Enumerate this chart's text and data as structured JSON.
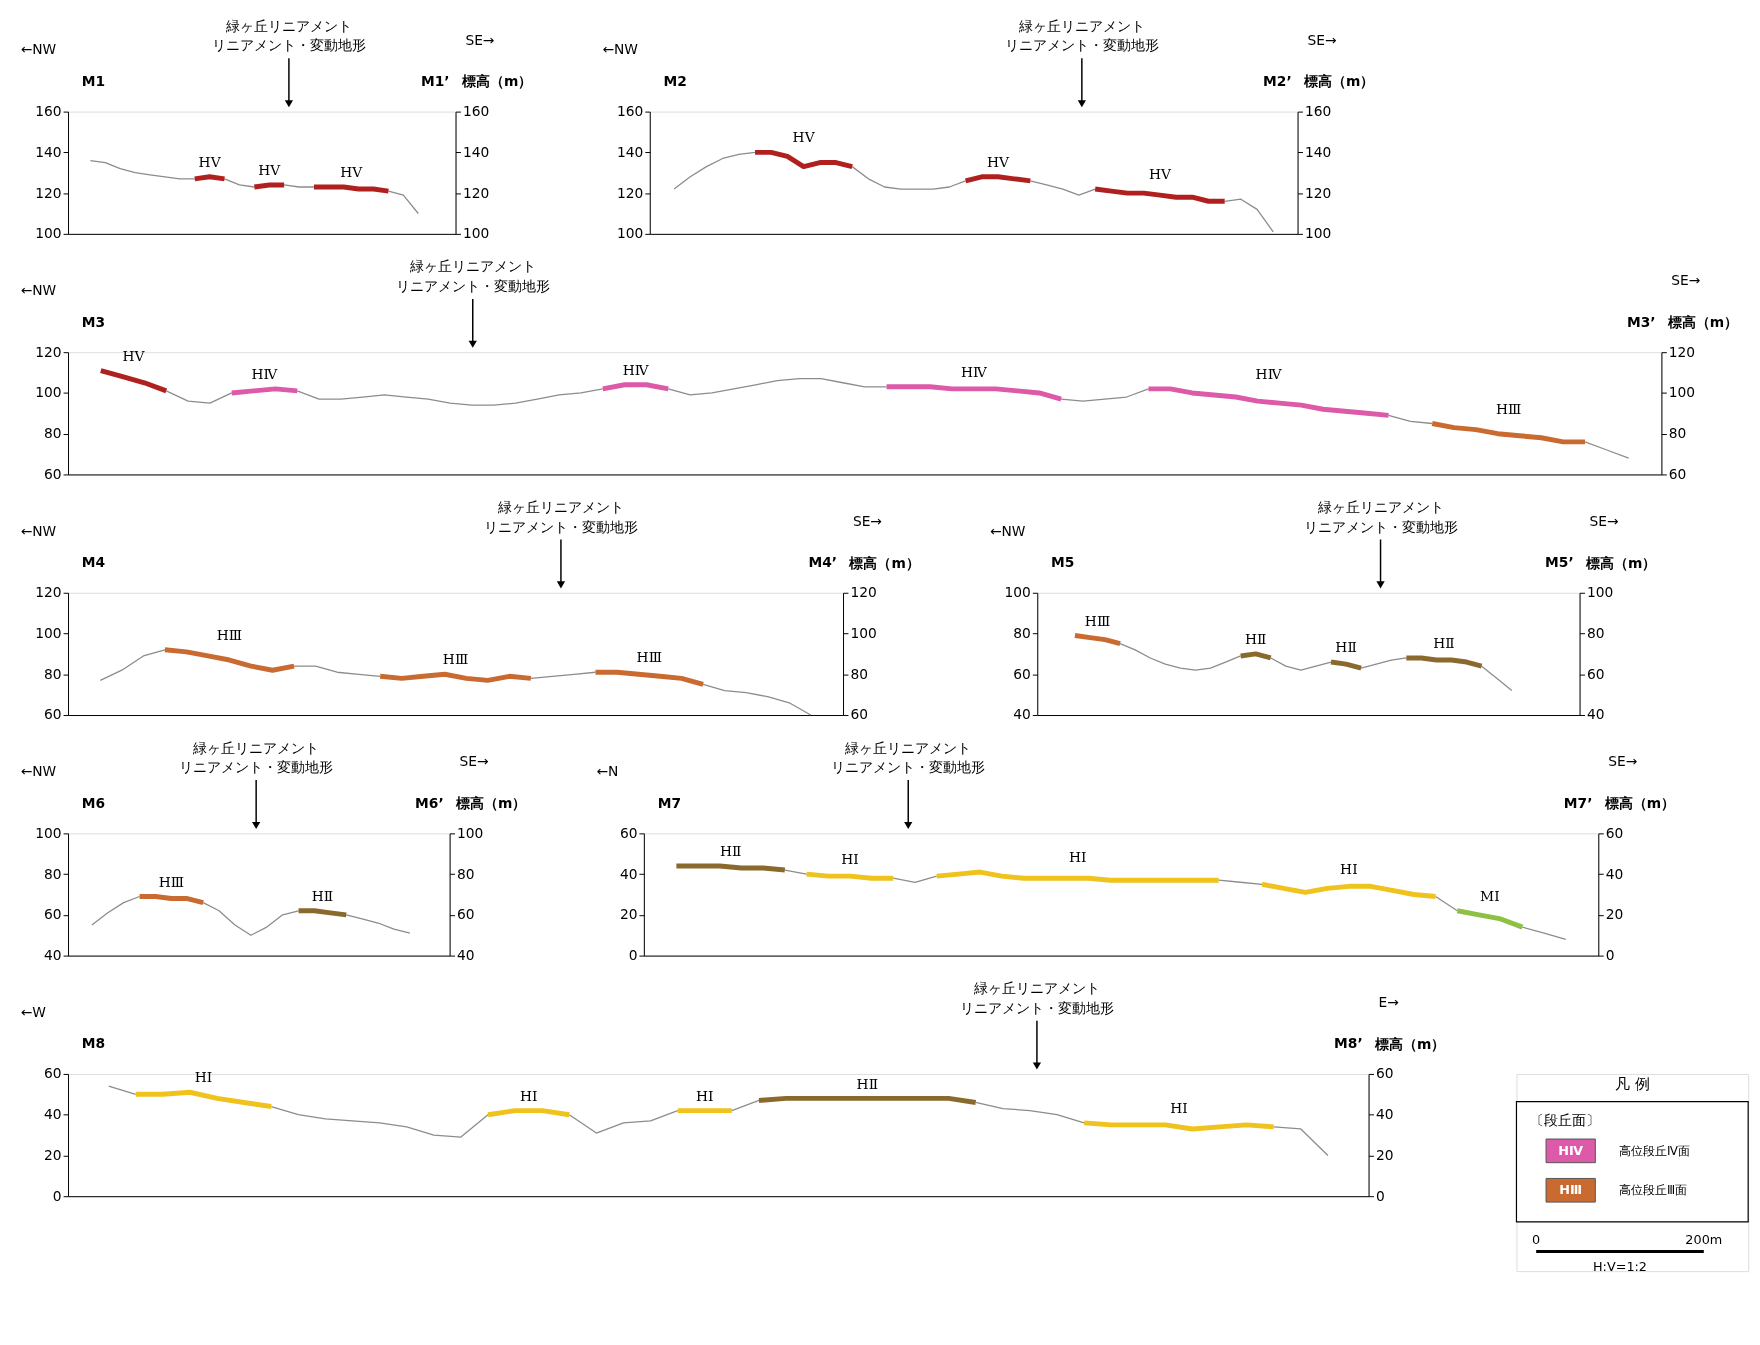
{
  "chart_data": [
    {
      "type": "line",
      "categories": [
        null,
        null,
        null,
        null,
        null,
        null,
        null,
        null,
        null,
        null,
        null,
        null,
        null,
        null,
        null,
        null,
        null,
        null,
        null,
        null,
        null,
        null,
        null,
        null,
        null,
        null
      ],
      "series": [
        {
          "color": "#8c8c8c",
          "values": [
            null,
            136,
            135,
            132,
            130,
            129,
            128,
            127,
            127,
            null,
            127,
            124,
            123,
            null,
            124,
            123,
            123,
            null,
            null,
            null,
            null,
            121,
            119,
            110,
            null,
            null
          ]
        },
        {
          "name": "HⅤ",
          "color": "#b0201e",
          "values": [
            null,
            null,
            null,
            null,
            null,
            null,
            null,
            null,
            127,
            128,
            127,
            null,
            123,
            124,
            124,
            null,
            123,
            123,
            123,
            122,
            122,
            121,
            null,
            null,
            null,
            null
          ]
        }
      ],
      "ylim": [
        100,
        160
      ],
      "yticks": [
        100,
        120,
        140,
        160
      ],
      "y2lim": [
        100,
        160
      ],
      "y2ticks": [
        100,
        120,
        140,
        160
      ],
      "y2label": "標高（m）",
      "annotations": [
        "←NW",
        "SE→",
        "M1",
        "M1’",
        "緑ヶ丘リニアメント",
        "リニアメント・変動地形"
      ]
    },
    {
      "type": "line",
      "categories": [
        null,
        null,
        null,
        null,
        null,
        null,
        null,
        null,
        null,
        null,
        null,
        null,
        null,
        null,
        null,
        null,
        null,
        null,
        null,
        null,
        null,
        null,
        null,
        null,
        null,
        null,
        null,
        null,
        null,
        null,
        null,
        null,
        null,
        null,
        null,
        null,
        null,
        null,
        null,
        null
      ],
      "series": [
        {
          "color": "#8c8c8c",
          "values": [
            null,
            122,
            128,
            133,
            137,
            139,
            140,
            null,
            null,
            null,
            null,
            null,
            133,
            127,
            123,
            122,
            122,
            122,
            123,
            126,
            null,
            null,
            null,
            126,
            124,
            122,
            119,
            122,
            null,
            null,
            null,
            null,
            null,
            null,
            null,
            116,
            117,
            112,
            101,
            null
          ]
        },
        {
          "name": "HⅤ",
          "color": "#b0201e",
          "values": [
            null,
            null,
            null,
            null,
            null,
            null,
            140,
            140,
            138,
            133,
            135,
            135,
            133,
            null,
            null,
            null,
            null,
            null,
            null,
            126,
            128,
            128,
            127,
            126,
            null,
            null,
            null,
            122,
            121,
            120,
            120,
            119,
            118,
            118,
            116,
            116,
            null,
            null,
            null,
            null
          ]
        }
      ],
      "ylim": [
        100,
        160
      ],
      "yticks": [
        100,
        120,
        140,
        160
      ],
      "y2lim": [
        100,
        160
      ],
      "y2ticks": [
        100,
        120,
        140,
        160
      ],
      "y2label": "標高（m）",
      "annotations": [
        "←NW",
        "SE→",
        "M2",
        "M2’",
        "緑ヶ丘リニアメント",
        "リニアメント・変動地形"
      ]
    },
    {
      "type": "line",
      "categories": [
        null,
        null,
        null,
        null,
        null,
        null,
        null,
        null,
        null,
        null,
        null,
        null,
        null,
        null,
        null,
        null,
        null,
        null,
        null,
        null,
        null,
        null,
        null,
        null,
        null,
        null,
        null,
        null,
        null,
        null,
        null,
        null,
        null,
        null,
        null,
        null,
        null,
        null,
        null,
        null,
        null,
        null,
        null,
        null,
        null,
        null,
        null,
        null,
        null,
        null,
        null,
        null,
        null,
        null,
        null,
        null,
        null,
        null,
        null,
        null,
        null,
        null,
        null,
        null,
        null,
        null,
        null,
        null,
        null,
        null,
        null,
        null,
        null
      ],
      "series": [
        {
          "color": "#8c8c8c",
          "values": [
            null,
            null,
            null,
            null,
            101,
            96,
            95,
            100,
            null,
            null,
            101,
            97,
            97,
            98,
            99,
            98,
            97,
            95,
            94,
            94,
            95,
            97,
            99,
            100,
            102,
            null,
            null,
            102,
            99,
            100,
            102,
            104,
            106,
            107,
            107,
            105,
            103,
            103,
            null,
            null,
            null,
            null,
            null,
            null,
            null,
            97,
            96,
            97,
            98,
            102,
            null,
            null,
            null,
            null,
            null,
            null,
            null,
            null,
            null,
            null,
            89,
            86,
            85,
            null,
            null,
            null,
            null,
            null,
            null,
            76,
            72,
            68,
            null
          ]
        },
        {
          "name": "HⅤ",
          "color": "#b0201e",
          "values": [
            null,
            111,
            108,
            105,
            101,
            null,
            null,
            null,
            null,
            null,
            null,
            null,
            null,
            null,
            null,
            null,
            null,
            null,
            null,
            null,
            null,
            null,
            null,
            null,
            null,
            null,
            null,
            null,
            null,
            null,
            null,
            null,
            null,
            null,
            null,
            null,
            null,
            null,
            null,
            null,
            null,
            null,
            null,
            null,
            null,
            null,
            null,
            null,
            null,
            null,
            null,
            null,
            null,
            null,
            null,
            null,
            null,
            null,
            null,
            null,
            null,
            null,
            null,
            null,
            null,
            null,
            null,
            null,
            null,
            null,
            null,
            null,
            null
          ]
        },
        {
          "name": "HⅣ",
          "color": "#dc5aa8",
          "values": [
            null,
            null,
            null,
            null,
            null,
            null,
            null,
            100,
            101,
            102,
            101,
            null,
            null,
            null,
            null,
            null,
            null,
            null,
            null,
            null,
            null,
            null,
            null,
            null,
            102,
            104,
            104,
            102,
            null,
            null,
            null,
            null,
            null,
            null,
            null,
            null,
            null,
            103,
            103,
            103,
            102,
            102,
            102,
            101,
            100,
            97,
            null,
            null,
            null,
            102,
            102,
            100,
            99,
            98,
            96,
            95,
            94,
            92,
            91,
            90,
            89,
            null,
            null,
            null,
            null,
            null,
            null,
            null,
            null,
            null,
            null,
            null,
            null
          ]
        },
        {
          "name": "HⅢ",
          "color": "#c96a30",
          "values": [
            null,
            null,
            null,
            null,
            null,
            null,
            null,
            null,
            null,
            null,
            null,
            null,
            null,
            null,
            null,
            null,
            null,
            null,
            null,
            null,
            null,
            null,
            null,
            null,
            null,
            null,
            null,
            null,
            null,
            null,
            null,
            null,
            null,
            null,
            null,
            null,
            null,
            null,
            null,
            null,
            null,
            null,
            null,
            null,
            null,
            null,
            null,
            null,
            null,
            null,
            null,
            null,
            null,
            null,
            null,
            null,
            null,
            null,
            null,
            null,
            null,
            null,
            85,
            83,
            82,
            80,
            79,
            78,
            76,
            76,
            null,
            null,
            null
          ]
        }
      ],
      "ylim": [
        60,
        120
      ],
      "yticks": [
        60,
        80,
        100,
        120
      ],
      "y2lim": [
        60,
        120
      ],
      "y2ticks": [
        60,
        80,
        100,
        120
      ],
      "y2label": "標高（m）",
      "annotations": [
        "←NW",
        "SE→",
        "M3",
        "M3’",
        "緑ヶ丘リニアメント",
        "リニアメント・変動地形"
      ]
    },
    {
      "type": "line",
      "categories": [
        null,
        null,
        null,
        null,
        null,
        null,
        null,
        null,
        null,
        null,
        null,
        null,
        null,
        null,
        null,
        null,
        null,
        null,
        null,
        null,
        null,
        null,
        null,
        null,
        null,
        null,
        null,
        null,
        null,
        null,
        null,
        null,
        null,
        null,
        null,
        null
      ],
      "series": [
        {
          "color": "#8c8c8c",
          "values": [
            null,
            77,
            82,
            89,
            92,
            null,
            null,
            null,
            null,
            null,
            84,
            84,
            81,
            80,
            79,
            null,
            null,
            null,
            null,
            null,
            null,
            78,
            79,
            80,
            81,
            null,
            null,
            null,
            null,
            75,
            72,
            71,
            69,
            66,
            60,
            null
          ]
        },
        {
          "name": "HⅢ",
          "color": "#c96a30",
          "values": [
            null,
            null,
            null,
            null,
            92,
            91,
            89,
            87,
            84,
            82,
            84,
            null,
            null,
            null,
            79,
            78,
            79,
            80,
            78,
            77,
            79,
            78,
            null,
            null,
            81,
            81,
            80,
            79,
            78,
            75,
            null,
            null,
            null,
            null,
            null,
            null
          ]
        }
      ],
      "ylim": [
        60,
        120
      ],
      "yticks": [
        60,
        80,
        100,
        120
      ],
      "y2lim": [
        60,
        120
      ],
      "y2ticks": [
        60,
        80,
        100,
        120
      ],
      "y2label": "標高（m）",
      "annotations": [
        "←NW",
        "SE→",
        "M4",
        "M4’",
        "緑ヶ丘リニアメント",
        "リニアメント・変動地形"
      ]
    },
    {
      "type": "line",
      "categories": [
        null,
        null,
        null,
        null,
        null,
        null,
        null,
        null,
        null,
        null,
        null,
        null,
        null,
        null,
        null,
        null,
        null,
        null,
        null,
        null,
        null,
        null,
        null,
        null,
        null,
        null,
        null,
        null,
        null,
        null,
        null,
        null,
        null,
        null,
        null,
        null
      ],
      "series": [
        {
          "color": "#8c8c8c",
          "values": [
            null,
            null,
            null,
            null,
            null,
            75,
            72,
            68,
            65,
            63,
            62,
            63,
            66,
            69,
            null,
            68,
            64,
            62,
            64,
            66,
            null,
            63,
            65,
            67,
            68,
            null,
            null,
            null,
            null,
            64,
            58,
            52,
            null,
            null,
            null,
            null
          ]
        },
        {
          "name": "HⅢ",
          "color": "#c96a30",
          "values": [
            null,
            null,
            79,
            78,
            77,
            75,
            null,
            null,
            null,
            null,
            null,
            null,
            null,
            null,
            null,
            null,
            null,
            null,
            null,
            null,
            null,
            null,
            null,
            null,
            null,
            null,
            null,
            null,
            null,
            null,
            null,
            null,
            null,
            null,
            null,
            null
          ]
        },
        {
          "name": "HⅡ",
          "color": "#8a6a2c",
          "values": [
            null,
            null,
            null,
            null,
            null,
            null,
            null,
            null,
            null,
            null,
            null,
            null,
            null,
            69,
            70,
            68,
            null,
            null,
            null,
            66,
            65,
            63,
            null,
            null,
            68,
            68,
            67,
            67,
            66,
            64,
            null,
            null,
            null,
            null,
            null,
            null
          ]
        }
      ],
      "ylim": [
        40,
        100
      ],
      "yticks": [
        40,
        60,
        80,
        100
      ],
      "y2lim": [
        40,
        100
      ],
      "y2ticks": [
        40,
        60,
        80,
        100
      ],
      "y2label": "標高（m）",
      "annotations": [
        "←NW",
        "SE→",
        "M5",
        "M5’",
        "緑ヶ丘リニアメント",
        "リニアメント・変動地形"
      ]
    },
    {
      "type": "line",
      "categories": [
        null,
        null,
        null,
        null,
        null,
        null,
        null,
        null,
        null,
        null,
        null,
        null,
        null,
        null,
        null,
        null,
        null,
        null,
        null,
        null,
        null,
        null,
        null,
        null
      ],
      "series": [
        {
          "color": "#8c8c8c",
          "values": [
            null,
            55,
            61,
            66,
            69,
            null,
            null,
            null,
            66,
            62,
            55,
            50,
            54,
            60,
            62,
            null,
            null,
            60,
            58,
            56,
            53,
            51,
            null,
            null
          ]
        },
        {
          "name": "HⅢ",
          "color": "#c96a30",
          "values": [
            null,
            null,
            null,
            null,
            69,
            69,
            68,
            68,
            66,
            null,
            null,
            null,
            null,
            null,
            null,
            null,
            null,
            null,
            null,
            null,
            null,
            null,
            null,
            null
          ]
        },
        {
          "name": "HⅡ",
          "color": "#8a6a2c",
          "values": [
            null,
            null,
            null,
            null,
            null,
            null,
            null,
            null,
            null,
            null,
            null,
            null,
            null,
            null,
            62,
            62,
            61,
            60,
            null,
            null,
            null,
            null,
            null,
            null
          ]
        }
      ],
      "ylim": [
        40,
        100
      ],
      "yticks": [
        40,
        60,
        80,
        100
      ],
      "y2lim": [
        40,
        100
      ],
      "y2ticks": [
        40,
        60,
        80,
        100
      ],
      "y2label": "標高（m）",
      "annotations": [
        "←NW",
        "SE→",
        "M6",
        "M6’",
        "緑ヶ丘リニアメント",
        "リニアメント・変動地形"
      ]
    },
    {
      "type": "line",
      "categories": [
        null,
        null,
        null,
        null,
        null,
        null,
        null,
        null,
        null,
        null,
        null,
        null,
        null,
        null,
        null,
        null,
        null,
        null,
        null,
        null,
        null,
        null,
        null,
        null,
        null,
        null,
        null,
        null,
        null,
        null,
        null,
        null,
        null,
        null,
        null,
        null,
        null,
        null,
        null,
        null,
        null,
        null,
        null,
        null
      ],
      "series": [
        {
          "color": "#8c8c8c",
          "values": [
            null,
            null,
            null,
            null,
            null,
            null,
            42,
            40,
            null,
            null,
            null,
            38,
            36,
            39,
            null,
            null,
            null,
            null,
            null,
            null,
            null,
            null,
            null,
            null,
            null,
            null,
            37,
            36,
            35,
            null,
            null,
            null,
            null,
            null,
            null,
            null,
            29,
            22,
            null,
            null,
            14,
            11,
            8,
            null
          ]
        },
        {
          "name": "HⅡ",
          "color": "#8a6a2c",
          "values": [
            null,
            44,
            44,
            44,
            43,
            43,
            42,
            null,
            null,
            null,
            null,
            null,
            null,
            null,
            null,
            null,
            null,
            null,
            null,
            null,
            null,
            null,
            null,
            null,
            null,
            null,
            null,
            null,
            null,
            null,
            null,
            null,
            null,
            null,
            null,
            null,
            null,
            null,
            null,
            null,
            null,
            null,
            null,
            null
          ]
        },
        {
          "name": "HⅠ",
          "color": "#f0c21c",
          "values": [
            null,
            null,
            null,
            null,
            null,
            null,
            null,
            40,
            39,
            39,
            38,
            38,
            null,
            39,
            40,
            41,
            39,
            38,
            38,
            38,
            38,
            37,
            37,
            37,
            37,
            37,
            37,
            null,
            35,
            33,
            31,
            33,
            34,
            34,
            32,
            30,
            29,
            null,
            null,
            null,
            null,
            null,
            null,
            null
          ]
        },
        {
          "name": "MⅠ",
          "color": "#8dc043",
          "values": [
            null,
            null,
            null,
            null,
            null,
            null,
            null,
            null,
            null,
            null,
            null,
            null,
            null,
            null,
            null,
            null,
            null,
            null,
            null,
            null,
            null,
            null,
            null,
            null,
            null,
            null,
            null,
            null,
            null,
            null,
            null,
            null,
            null,
            null,
            null,
            null,
            null,
            22,
            20,
            18,
            14,
            null,
            null,
            null
          ]
        }
      ],
      "ylim": [
        0,
        60
      ],
      "yticks": [
        0,
        20,
        40,
        60
      ],
      "y2lim": [
        0,
        60
      ],
      "y2ticks": [
        0,
        20,
        40,
        60
      ],
      "y2label": "標高（m）",
      "annotations": [
        "←N",
        "SE→",
        "M7",
        "M7’",
        "緑ヶ丘リニアメント",
        "リニアメント・変動地形"
      ]
    },
    {
      "type": "line",
      "categories": [
        null,
        null,
        null,
        null,
        null,
        null,
        null,
        null,
        null,
        null,
        null,
        null,
        null,
        null,
        null,
        null,
        null,
        null,
        null,
        null,
        null,
        null,
        null,
        null,
        null,
        null,
        null,
        null,
        null,
        null,
        null,
        null,
        null,
        null,
        null,
        null,
        null,
        null,
        null,
        null,
        null,
        null,
        null,
        null,
        null,
        null,
        null,
        null
      ],
      "series": [
        {
          "color": "#8c8c8c",
          "values": [
            null,
            54,
            50,
            null,
            null,
            null,
            null,
            44,
            40,
            38,
            37,
            36,
            34,
            30,
            29,
            40,
            null,
            null,
            40,
            31,
            36,
            37,
            42,
            null,
            42,
            47,
            null,
            null,
            null,
            null,
            null,
            null,
            null,
            46,
            43,
            42,
            40,
            36,
            null,
            null,
            null,
            null,
            null,
            null,
            34,
            33,
            20,
            null
          ]
        },
        {
          "name": "HⅠ",
          "color": "#f0c21c",
          "values": [
            null,
            null,
            50,
            50,
            51,
            48,
            46,
            44,
            null,
            null,
            null,
            null,
            null,
            null,
            null,
            40,
            42,
            42,
            40,
            null,
            null,
            null,
            42,
            42,
            42,
            null,
            null,
            null,
            null,
            null,
            null,
            null,
            null,
            null,
            null,
            null,
            null,
            36,
            35,
            35,
            35,
            33,
            34,
            35,
            34,
            null,
            null,
            null
          ]
        },
        {
          "name": "HⅡ",
          "color": "#8a6a2c",
          "values": [
            null,
            null,
            null,
            null,
            null,
            null,
            null,
            null,
            null,
            null,
            null,
            null,
            null,
            null,
            null,
            null,
            null,
            null,
            null,
            null,
            null,
            null,
            null,
            null,
            null,
            47,
            48,
            48,
            48,
            48,
            48,
            48,
            48,
            46,
            null,
            null,
            null,
            null,
            null,
            null,
            null,
            null,
            null,
            null,
            null,
            null,
            null,
            null
          ]
        }
      ],
      "ylim": [
        0,
        60
      ],
      "yticks": [
        0,
        20,
        40,
        60
      ],
      "y2lim": [
        0,
        60
      ],
      "y2ticks": [
        0,
        20,
        40,
        60
      ],
      "y2label": "標高（m）",
      "annotations": [
        "←W",
        "E→",
        "M8",
        "M8’",
        "緑ヶ丘リニアメント",
        "リニアメント・変動地形"
      ]
    },
    {
      "type": "other",
      "title": "凡 例",
      "subtitle": "〔段丘面〕",
      "categories": [
        "HⅣ",
        "HⅢ"
      ],
      "colors": [
        "#dc5aa8",
        "#c96a30"
      ],
      "annotations": [
        "高位段丘Ⅳ面",
        "高位段丘Ⅲ面",
        "0",
        "200m",
        "H:V=1:2"
      ]
    }
  ]
}
